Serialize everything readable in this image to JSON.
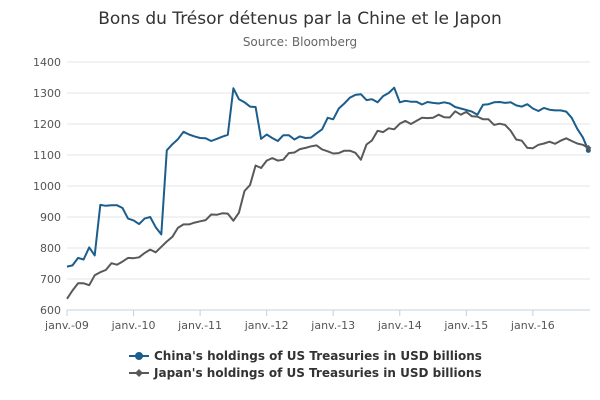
{
  "chart_data": {
    "type": "line",
    "title": "Bons du Trésor détenus par la Chine et le Japon",
    "subtitle": "Source: Bloomberg",
    "xlabel": "",
    "ylabel": "",
    "ylim": [
      600,
      1400
    ],
    "yticks": [
      600,
      700,
      800,
      900,
      1000,
      1100,
      1200,
      1300,
      1400
    ],
    "xticks": [
      "janv.-09",
      "janv.-10",
      "janv.-11",
      "janv.-12",
      "janv.-13",
      "janv.-14",
      "janv.-15",
      "janv.-16"
    ],
    "grid": "horizontal",
    "legend_position": "bottom",
    "series": [
      {
        "name": "China's holdings of US Treasuries in USD billions",
        "color": "#1b5d8c",
        "marker": "circle",
        "points": [
          [
            "2009-01",
            740
          ],
          [
            "2009-02",
            744
          ],
          [
            "2009-03",
            768
          ],
          [
            "2009-04",
            763
          ],
          [
            "2009-05",
            802
          ],
          [
            "2009-06",
            776
          ],
          [
            "2009-07",
            939
          ],
          [
            "2009-08",
            936
          ],
          [
            "2009-09",
            938
          ],
          [
            "2009-10",
            938
          ],
          [
            "2009-11",
            929
          ],
          [
            "2009-12",
            895
          ],
          [
            "2010-01",
            889
          ],
          [
            "2010-02",
            877
          ],
          [
            "2010-03",
            895
          ],
          [
            "2010-04",
            900
          ],
          [
            "2010-05",
            867
          ],
          [
            "2010-06",
            844
          ],
          [
            "2010-07",
            1115
          ],
          [
            "2010-08",
            1135
          ],
          [
            "2010-09",
            1151
          ],
          [
            "2010-10",
            1175
          ],
          [
            "2010-11",
            1166
          ],
          [
            "2010-12",
            1160
          ],
          [
            "2011-01",
            1155
          ],
          [
            "2011-02",
            1154
          ],
          [
            "2011-03",
            1145
          ],
          [
            "2011-04",
            1152
          ],
          [
            "2011-05",
            1159
          ],
          [
            "2011-06",
            1165
          ],
          [
            "2011-07",
            1315
          ],
          [
            "2011-08",
            1280
          ],
          [
            "2011-09",
            1270
          ],
          [
            "2011-10",
            1256
          ],
          [
            "2011-11",
            1255
          ],
          [
            "2011-12",
            1152
          ],
          [
            "2012-01",
            1166
          ],
          [
            "2012-02",
            1155
          ],
          [
            "2012-03",
            1145
          ],
          [
            "2012-04",
            1164
          ],
          [
            "2012-05",
            1164
          ],
          [
            "2012-06",
            1150
          ],
          [
            "2012-07",
            1160
          ],
          [
            "2012-08",
            1155
          ],
          [
            "2012-09",
            1156
          ],
          [
            "2012-10",
            1170
          ],
          [
            "2012-11",
            1183
          ],
          [
            "2012-12",
            1220
          ],
          [
            "2013-01",
            1215
          ],
          [
            "2013-02",
            1250
          ],
          [
            "2013-03",
            1266
          ],
          [
            "2013-04",
            1285
          ],
          [
            "2013-05",
            1294
          ],
          [
            "2013-06",
            1296
          ],
          [
            "2013-07",
            1277
          ],
          [
            "2013-08",
            1280
          ],
          [
            "2013-09",
            1270
          ],
          [
            "2013-10",
            1290
          ],
          [
            "2013-11",
            1300
          ],
          [
            "2013-12",
            1317
          ],
          [
            "2014-01",
            1270
          ],
          [
            "2014-02",
            1275
          ],
          [
            "2014-03",
            1272
          ],
          [
            "2014-04",
            1272
          ],
          [
            "2014-05",
            1263
          ],
          [
            "2014-06",
            1271
          ],
          [
            "2014-07",
            1268
          ],
          [
            "2014-08",
            1266
          ],
          [
            "2014-09",
            1270
          ],
          [
            "2014-10",
            1266
          ],
          [
            "2014-11",
            1255
          ],
          [
            "2014-12",
            1250
          ],
          [
            "2015-01",
            1245
          ],
          [
            "2015-02",
            1240
          ],
          [
            "2015-03",
            1230
          ],
          [
            "2015-04",
            1262
          ],
          [
            "2015-05",
            1264
          ],
          [
            "2015-06",
            1270
          ],
          [
            "2015-07",
            1271
          ],
          [
            "2015-08",
            1268
          ],
          [
            "2015-09",
            1270
          ],
          [
            "2015-10",
            1260
          ],
          [
            "2015-11",
            1256
          ],
          [
            "2015-12",
            1264
          ],
          [
            "2016-01",
            1250
          ],
          [
            "2016-02",
            1242
          ],
          [
            "2016-03",
            1252
          ],
          [
            "2016-04",
            1246
          ],
          [
            "2016-05",
            1244
          ],
          [
            "2016-06",
            1244
          ],
          [
            "2016-07",
            1240
          ],
          [
            "2016-08",
            1220
          ],
          [
            "2016-09",
            1185
          ],
          [
            "2016-10",
            1157
          ],
          [
            "2016-11",
            1115
          ]
        ]
      },
      {
        "name": "Japan's holdings of US Treasuries in USD billions",
        "color": "#595959",
        "marker": "diamond",
        "points": [
          [
            "2009-01",
            636
          ],
          [
            "2009-02",
            663
          ],
          [
            "2009-03",
            686
          ],
          [
            "2009-04",
            686
          ],
          [
            "2009-05",
            680
          ],
          [
            "2009-06",
            712
          ],
          [
            "2009-07",
            722
          ],
          [
            "2009-08",
            729
          ],
          [
            "2009-09",
            751
          ],
          [
            "2009-10",
            746
          ],
          [
            "2009-11",
            756
          ],
          [
            "2009-12",
            768
          ],
          [
            "2010-01",
            767
          ],
          [
            "2010-02",
            770
          ],
          [
            "2010-03",
            784
          ],
          [
            "2010-04",
            795
          ],
          [
            "2010-05",
            786
          ],
          [
            "2010-06",
            804
          ],
          [
            "2010-07",
            821
          ],
          [
            "2010-08",
            836
          ],
          [
            "2010-09",
            865
          ],
          [
            "2010-10",
            876
          ],
          [
            "2010-11",
            876
          ],
          [
            "2010-12",
            882
          ],
          [
            "2011-01",
            886
          ],
          [
            "2011-02",
            890
          ],
          [
            "2011-03",
            908
          ],
          [
            "2011-04",
            907
          ],
          [
            "2011-05",
            912
          ],
          [
            "2011-06",
            911
          ],
          [
            "2011-07",
            888
          ],
          [
            "2011-08",
            914
          ],
          [
            "2011-09",
            984
          ],
          [
            "2011-10",
            1003
          ],
          [
            "2011-11",
            1066
          ],
          [
            "2011-12",
            1058
          ],
          [
            "2012-01",
            1082
          ],
          [
            "2012-02",
            1090
          ],
          [
            "2012-03",
            1082
          ],
          [
            "2012-04",
            1085
          ],
          [
            "2012-05",
            1106
          ],
          [
            "2012-06",
            1108
          ],
          [
            "2012-07",
            1119
          ],
          [
            "2012-08",
            1123
          ],
          [
            "2012-09",
            1128
          ],
          [
            "2012-10",
            1131
          ],
          [
            "2012-11",
            1118
          ],
          [
            "2012-12",
            1112
          ],
          [
            "2013-01",
            1105
          ],
          [
            "2013-02",
            1106
          ],
          [
            "2013-03",
            1114
          ],
          [
            "2013-04",
            1114
          ],
          [
            "2013-05",
            1107
          ],
          [
            "2013-06",
            1085
          ],
          [
            "2013-07",
            1134
          ],
          [
            "2013-08",
            1147
          ],
          [
            "2013-09",
            1178
          ],
          [
            "2013-10",
            1174
          ],
          [
            "2013-11",
            1186
          ],
          [
            "2013-12",
            1183
          ],
          [
            "2014-01",
            1201
          ],
          [
            "2014-02",
            1210
          ],
          [
            "2014-03",
            1200
          ],
          [
            "2014-04",
            1210
          ],
          [
            "2014-05",
            1220
          ],
          [
            "2014-06",
            1219
          ],
          [
            "2014-07",
            1220
          ],
          [
            "2014-08",
            1230
          ],
          [
            "2014-09",
            1222
          ],
          [
            "2014-10",
            1221
          ],
          [
            "2014-11",
            1241
          ],
          [
            "2014-12",
            1230
          ],
          [
            "2015-01",
            1239
          ],
          [
            "2015-02",
            1225
          ],
          [
            "2015-03",
            1224
          ],
          [
            "2015-04",
            1215
          ],
          [
            "2015-05",
            1215
          ],
          [
            "2015-06",
            1197
          ],
          [
            "2015-07",
            1201
          ],
          [
            "2015-08",
            1197
          ],
          [
            "2015-09",
            1178
          ],
          [
            "2015-10",
            1150
          ],
          [
            "2015-11",
            1146
          ],
          [
            "2015-12",
            1123
          ],
          [
            "2016-01",
            1122
          ],
          [
            "2016-02",
            1133
          ],
          [
            "2016-03",
            1137
          ],
          [
            "2016-04",
            1143
          ],
          [
            "2016-05",
            1136
          ],
          [
            "2016-06",
            1146
          ],
          [
            "2016-07",
            1154
          ],
          [
            "2016-08",
            1145
          ],
          [
            "2016-09",
            1137
          ],
          [
            "2016-10",
            1133
          ],
          [
            "2016-11",
            1123
          ]
        ]
      }
    ]
  }
}
